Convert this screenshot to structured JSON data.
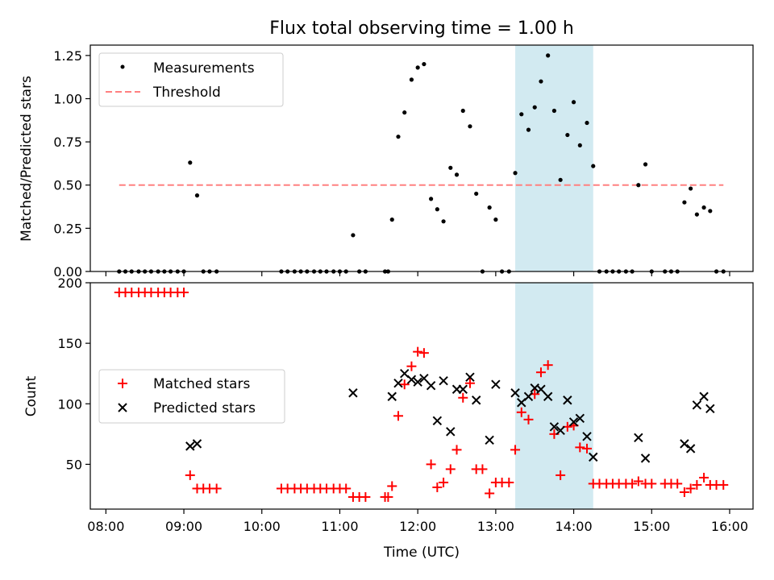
{
  "chart_data": {
    "type": "scatter",
    "title": "Flux total observing time = 1.00 h",
    "xlabel": "Time (UTC)",
    "x_unit": "hours UTC",
    "xlim": [
      7.8,
      16.3
    ],
    "x_ticks": [
      8,
      9,
      10,
      11,
      12,
      13,
      14,
      15,
      16
    ],
    "x_tick_labels": [
      "08:00",
      "09:00",
      "10:00",
      "11:00",
      "12:00",
      "13:00",
      "14:00",
      "15:00",
      "16:00"
    ],
    "highlight_span": [
      13.25,
      14.25
    ],
    "colors": {
      "measurement": "#000000",
      "threshold": "#ff8080",
      "matched": "#ff0000",
      "predicted": "#000000",
      "span": "#add8e6"
    },
    "top_panel": {
      "ylabel": "Matched/Predicted stars",
      "ylim": [
        0,
        1.31
      ],
      "y_ticks": [
        0.0,
        0.25,
        0.5,
        0.75,
        1.0,
        1.25
      ],
      "y_tick_labels": [
        "0.00",
        "0.25",
        "0.50",
        "0.75",
        "1.00",
        "1.25"
      ],
      "legend": [
        "Measurements",
        "Threshold"
      ],
      "threshold": {
        "value": 0.5,
        "x_range": [
          8.17,
          15.92
        ]
      },
      "measurements": [
        [
          8.17,
          0
        ],
        [
          8.25,
          0
        ],
        [
          8.33,
          0
        ],
        [
          8.42,
          0
        ],
        [
          8.5,
          0
        ],
        [
          8.58,
          0
        ],
        [
          8.67,
          0
        ],
        [
          8.75,
          0
        ],
        [
          8.83,
          0
        ],
        [
          8.92,
          0
        ],
        [
          9.0,
          0
        ],
        [
          9.08,
          0.63
        ],
        [
          9.17,
          0.44
        ],
        [
          9.25,
          0
        ],
        [
          9.33,
          0
        ],
        [
          9.42,
          0
        ],
        [
          10.25,
          0
        ],
        [
          10.33,
          0
        ],
        [
          10.42,
          0
        ],
        [
          10.5,
          0
        ],
        [
          10.58,
          0
        ],
        [
          10.67,
          0
        ],
        [
          10.75,
          0
        ],
        [
          10.83,
          0
        ],
        [
          10.92,
          0
        ],
        [
          11.0,
          0
        ],
        [
          11.08,
          0
        ],
        [
          11.17,
          0.21
        ],
        [
          11.25,
          0
        ],
        [
          11.33,
          0
        ],
        [
          11.58,
          0
        ],
        [
          11.62,
          0
        ],
        [
          11.67,
          0.3
        ],
        [
          11.75,
          0.78
        ],
        [
          11.83,
          0.92
        ],
        [
          11.92,
          1.11
        ],
        [
          12.0,
          1.18
        ],
        [
          12.08,
          1.2
        ],
        [
          12.17,
          0.42
        ],
        [
          12.25,
          0.36
        ],
        [
          12.33,
          0.29
        ],
        [
          12.42,
          0.6
        ],
        [
          12.5,
          0.56
        ],
        [
          12.58,
          0.93
        ],
        [
          12.67,
          0.84
        ],
        [
          12.75,
          0.45
        ],
        [
          12.83,
          0
        ],
        [
          12.92,
          0.37
        ],
        [
          13.0,
          0.3
        ],
        [
          13.08,
          0
        ],
        [
          13.17,
          0
        ],
        [
          13.25,
          0.57
        ],
        [
          13.33,
          0.91
        ],
        [
          13.42,
          0.82
        ],
        [
          13.5,
          0.95
        ],
        [
          13.58,
          1.1
        ],
        [
          13.67,
          1.25
        ],
        [
          13.75,
          0.93
        ],
        [
          13.83,
          0.53
        ],
        [
          13.92,
          0.79
        ],
        [
          14.0,
          0.98
        ],
        [
          14.08,
          0.73
        ],
        [
          14.17,
          0.86
        ],
        [
          14.25,
          0.61
        ],
        [
          14.33,
          0
        ],
        [
          14.42,
          0
        ],
        [
          14.5,
          0
        ],
        [
          14.58,
          0
        ],
        [
          14.67,
          0
        ],
        [
          14.75,
          0
        ],
        [
          14.83,
          0.5
        ],
        [
          14.92,
          0.62
        ],
        [
          15.0,
          0
        ],
        [
          15.17,
          0
        ],
        [
          15.25,
          0
        ],
        [
          15.33,
          0
        ],
        [
          15.42,
          0.4
        ],
        [
          15.5,
          0.48
        ],
        [
          15.58,
          0.33
        ],
        [
          15.67,
          0.37
        ],
        [
          15.75,
          0.35
        ],
        [
          15.83,
          0
        ],
        [
          15.92,
          0
        ]
      ]
    },
    "bottom_panel": {
      "ylabel": "Count",
      "ylim": [
        13,
        200
      ],
      "y_ticks": [
        50,
        100,
        150,
        200
      ],
      "y_tick_labels": [
        "50",
        "100",
        "150",
        "200"
      ],
      "legend": [
        "Matched stars",
        "Predicted stars"
      ],
      "matched": [
        [
          8.17,
          192
        ],
        [
          8.25,
          192
        ],
        [
          8.33,
          192
        ],
        [
          8.42,
          192
        ],
        [
          8.5,
          192
        ],
        [
          8.58,
          192
        ],
        [
          8.67,
          192
        ],
        [
          8.75,
          192
        ],
        [
          8.83,
          192
        ],
        [
          8.92,
          192
        ],
        [
          9.0,
          192
        ],
        [
          9.08,
          41
        ],
        [
          9.17,
          30
        ],
        [
          9.25,
          30
        ],
        [
          9.33,
          30
        ],
        [
          9.42,
          30
        ],
        [
          10.25,
          30
        ],
        [
          10.33,
          30
        ],
        [
          10.42,
          30
        ],
        [
          10.5,
          30
        ],
        [
          10.58,
          30
        ],
        [
          10.67,
          30
        ],
        [
          10.75,
          30
        ],
        [
          10.83,
          30
        ],
        [
          10.92,
          30
        ],
        [
          11.0,
          30
        ],
        [
          11.08,
          30
        ],
        [
          11.17,
          23
        ],
        [
          11.25,
          23
        ],
        [
          11.33,
          23
        ],
        [
          11.58,
          23
        ],
        [
          11.62,
          23
        ],
        [
          11.67,
          32
        ],
        [
          11.75,
          90
        ],
        [
          11.83,
          116
        ],
        [
          11.92,
          131
        ],
        [
          12.0,
          143
        ],
        [
          12.08,
          142
        ],
        [
          12.17,
          50
        ],
        [
          12.25,
          31
        ],
        [
          12.33,
          35
        ],
        [
          12.42,
          46
        ],
        [
          12.5,
          62
        ],
        [
          12.58,
          105
        ],
        [
          12.67,
          117
        ],
        [
          12.75,
          46
        ],
        [
          12.83,
          46
        ],
        [
          12.92,
          26
        ],
        [
          13.0,
          35
        ],
        [
          13.08,
          35
        ],
        [
          13.17,
          35
        ],
        [
          13.25,
          62
        ],
        [
          13.33,
          93
        ],
        [
          13.42,
          87
        ],
        [
          13.5,
          108
        ],
        [
          13.58,
          126
        ],
        [
          13.67,
          132
        ],
        [
          13.75,
          75
        ],
        [
          13.83,
          41
        ],
        [
          13.92,
          81
        ],
        [
          14.0,
          82
        ],
        [
          14.08,
          64
        ],
        [
          14.17,
          63
        ],
        [
          14.25,
          34
        ],
        [
          14.33,
          34
        ],
        [
          14.42,
          34
        ],
        [
          14.5,
          34
        ],
        [
          14.58,
          34
        ],
        [
          14.67,
          34
        ],
        [
          14.75,
          34
        ],
        [
          14.83,
          36
        ],
        [
          14.92,
          34
        ],
        [
          15.0,
          34
        ],
        [
          15.17,
          34
        ],
        [
          15.25,
          34
        ],
        [
          15.33,
          34
        ],
        [
          15.42,
          27
        ],
        [
          15.5,
          30
        ],
        [
          15.58,
          33
        ],
        [
          15.67,
          39
        ],
        [
          15.75,
          33
        ],
        [
          15.83,
          33
        ],
        [
          15.92,
          33
        ]
      ],
      "predicted": [
        [
          9.08,
          65
        ],
        [
          9.17,
          67
        ],
        [
          11.17,
          109
        ],
        [
          11.67,
          106
        ],
        [
          11.75,
          117
        ],
        [
          11.83,
          125
        ],
        [
          11.92,
          120
        ],
        [
          12.0,
          118
        ],
        [
          12.08,
          121
        ],
        [
          12.17,
          115
        ],
        [
          12.25,
          86
        ],
        [
          12.33,
          119
        ],
        [
          12.42,
          77
        ],
        [
          12.5,
          112
        ],
        [
          12.58,
          112
        ],
        [
          12.67,
          122
        ],
        [
          12.75,
          103
        ],
        [
          12.92,
          70
        ],
        [
          13.0,
          116
        ],
        [
          13.25,
          109
        ],
        [
          13.33,
          101
        ],
        [
          13.42,
          106
        ],
        [
          13.5,
          113
        ],
        [
          13.58,
          112
        ],
        [
          13.67,
          106
        ],
        [
          13.75,
          81
        ],
        [
          13.83,
          78
        ],
        [
          13.92,
          103
        ],
        [
          14.0,
          85
        ],
        [
          14.08,
          88
        ],
        [
          14.17,
          73
        ],
        [
          14.25,
          56
        ],
        [
          14.83,
          72
        ],
        [
          14.92,
          55
        ],
        [
          15.42,
          67
        ],
        [
          15.5,
          63
        ],
        [
          15.58,
          99
        ],
        [
          15.67,
          106
        ],
        [
          15.75,
          96
        ]
      ]
    }
  }
}
